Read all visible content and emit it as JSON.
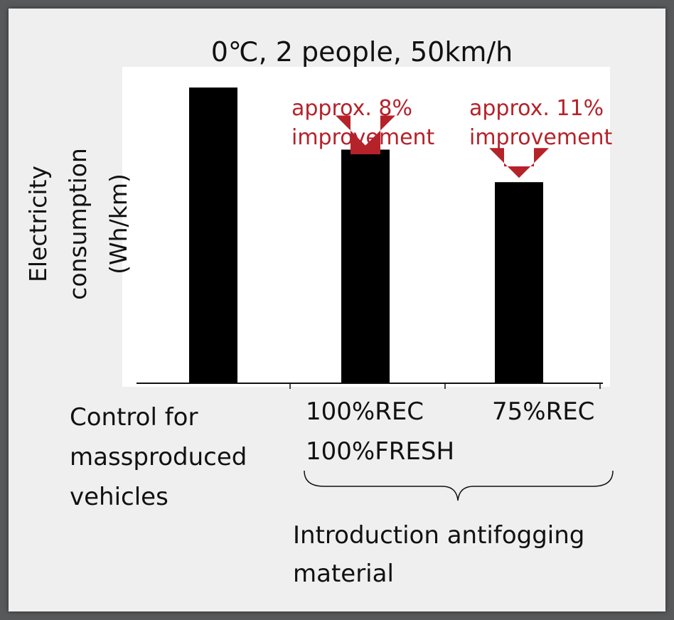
{
  "chart_data": {
    "type": "bar",
    "title": "0℃, 2 people, 50km/h",
    "ylabel_lines": [
      "Electricity",
      "consumption",
      "(Wh/km)"
    ],
    "categories": [
      [
        "Control for",
        "massproduced",
        "vehicles"
      ],
      [
        "100%REC",
        "100%FRESH"
      ],
      [
        "75%REC"
      ]
    ],
    "values": [
      100,
      79,
      68
    ],
    "ylim": [
      0,
      107
    ],
    "y_ticks_shown": false,
    "grid": false,
    "bar_color": "#000000",
    "annotations": [
      {
        "bar_index": 1,
        "lines": [
          "approx. 8%",
          "improvement"
        ]
      },
      {
        "bar_index": 2,
        "lines": [
          "approx. 11%",
          "improvement"
        ]
      }
    ],
    "annotation_color": "#b5222a",
    "group_label": {
      "bars": [
        1,
        2
      ],
      "lines": [
        "Introduction antifogging",
        "material"
      ]
    }
  }
}
